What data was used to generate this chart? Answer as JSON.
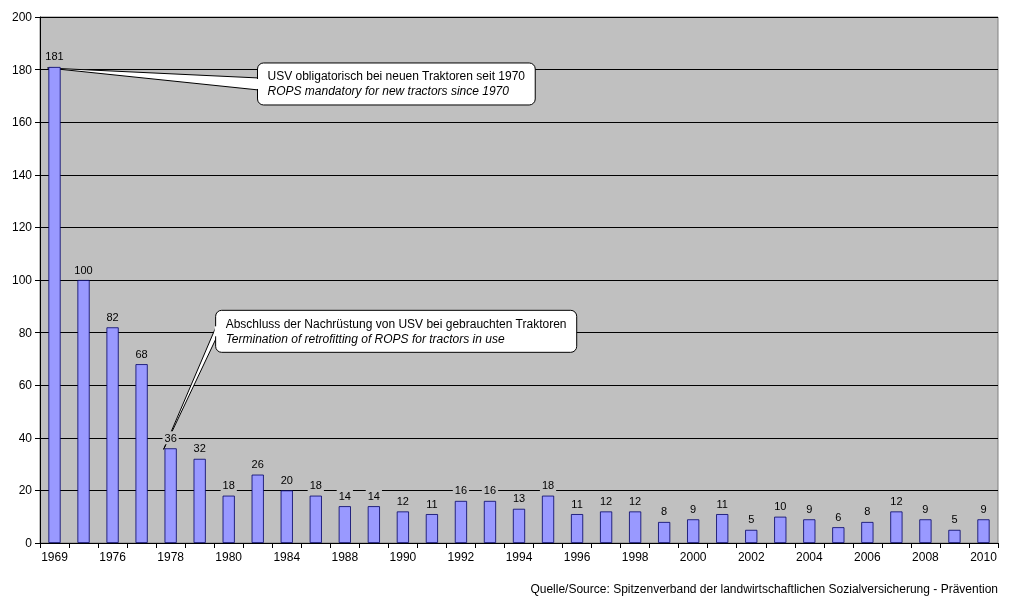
{
  "chart_data": {
    "type": "bar",
    "categories": [
      "1969",
      null,
      "1976",
      null,
      "1978",
      null,
      "1980",
      null,
      "1984",
      null,
      "1988",
      null,
      "1990",
      null,
      "1992",
      null,
      "1994",
      null,
      "1996",
      null,
      "1998",
      null,
      "2000",
      null,
      "2002",
      null,
      "2004",
      null,
      "2006",
      null,
      "2008",
      null,
      "2010"
    ],
    "values": [
      181,
      100,
      82,
      68,
      36,
      32,
      18,
      26,
      20,
      18,
      14,
      14,
      12,
      11,
      16,
      16,
      13,
      18,
      11,
      12,
      12,
      8,
      9,
      11,
      5,
      10,
      9,
      6,
      8,
      12,
      9,
      5,
      9
    ],
    "color": "#9999ff",
    "ylim": [
      0,
      200
    ],
    "yticks": [
      0,
      20,
      40,
      60,
      80,
      100,
      120,
      140,
      160,
      180,
      200
    ],
    "grid": "y",
    "data_labels": true,
    "annotations": [
      {
        "text": "USV obligatorisch bei neuen Traktoren seit 1970\nROPS mandatory for new tractors since 1970",
        "x": "1969",
        "y": 181
      },
      {
        "text": "Abschluss der Nachrüstung von USV bei gebrauchten Traktoren\nTermination of retrofitting of ROPS for tractors in use",
        "x": "1978",
        "y": 36
      },
      "Quelle/Source: Spitzenverband der landwirtschaftlichen Sozialversicherung - Prävention"
    ]
  }
}
